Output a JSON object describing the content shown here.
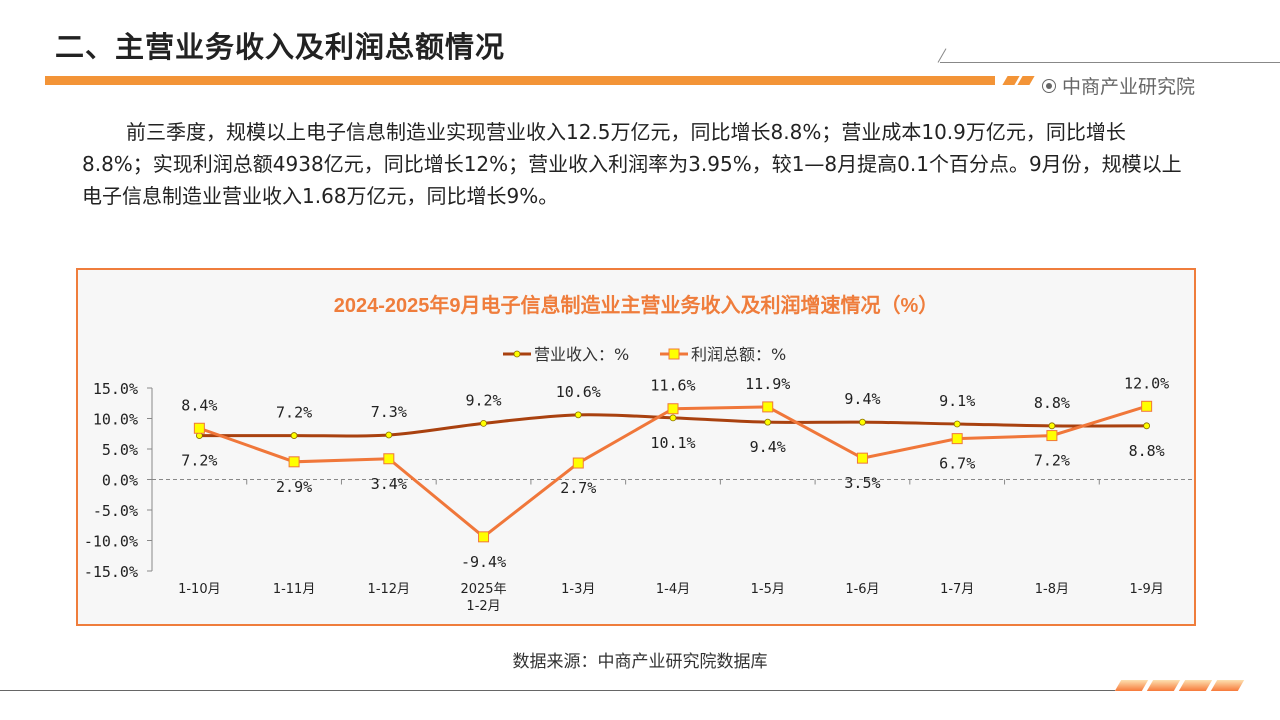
{
  "header": {
    "title": "二、主营业务收入及利润总额情况",
    "brand": "中商产业研究院"
  },
  "paragraph": "前三季度，规模以上电子信息制造业实现营业收入12.5万亿元，同比增长8.8%；营业成本10.9万亿元，同比增长8.8%；实现利润总额4938亿元，同比增长12%；营业收入利润率为3.95%，较1—8月提高0.1个百分点。9月份，规模以上电子信息制造业营业收入1.68万亿元，同比增长9%。",
  "source": "数据来源：中商产业研究院数据库",
  "colors": {
    "accent": "#f39437",
    "revenue": "#a9410f",
    "profit": "#f0773a",
    "marker": "#ffff00",
    "title": "#ef7d3c"
  },
  "chart_data": {
    "type": "line",
    "title": "2024-2025年9月电子信息制造业主营业务收入及利润增速情况（%）",
    "categories": [
      "1-10月",
      "1-11月",
      "1-12月",
      "2025年\n1-2月",
      "1-3月",
      "1-4月",
      "1-5月",
      "1-6月",
      "1-7月",
      "1-8月",
      "1-9月"
    ],
    "series": [
      {
        "name": "营业收入：%",
        "values": [
          7.2,
          7.2,
          7.3,
          9.2,
          10.6,
          10.1,
          9.4,
          9.4,
          9.1,
          8.8,
          8.8
        ],
        "labels": [
          "7.2%",
          "7.2%",
          "7.3%",
          "9.2%",
          "10.6%",
          "10.1%",
          "9.4%",
          "9.4%",
          "9.1%",
          "8.8%",
          "8.8%"
        ]
      },
      {
        "name": "利润总额：%",
        "values": [
          8.4,
          2.9,
          3.4,
          -9.4,
          2.7,
          11.6,
          11.9,
          3.5,
          6.7,
          7.2,
          12.0
        ],
        "labels": [
          "8.4%",
          "2.9%",
          "3.4%",
          "-9.4%",
          "2.7%",
          "11.6%",
          "11.9%",
          "3.5%",
          "6.7%",
          "7.2%",
          "12.0%"
        ]
      }
    ],
    "yticks": [
      "15.0%",
      "10.0%",
      "5.0%",
      "0.0%",
      "-5.0%",
      "-10.0%",
      "-15.0%"
    ],
    "ytick_values": [
      15,
      10,
      5,
      0,
      -5,
      -10,
      -15
    ],
    "ylim": [
      -15,
      15
    ],
    "legend": "top-center",
    "grid": false
  }
}
